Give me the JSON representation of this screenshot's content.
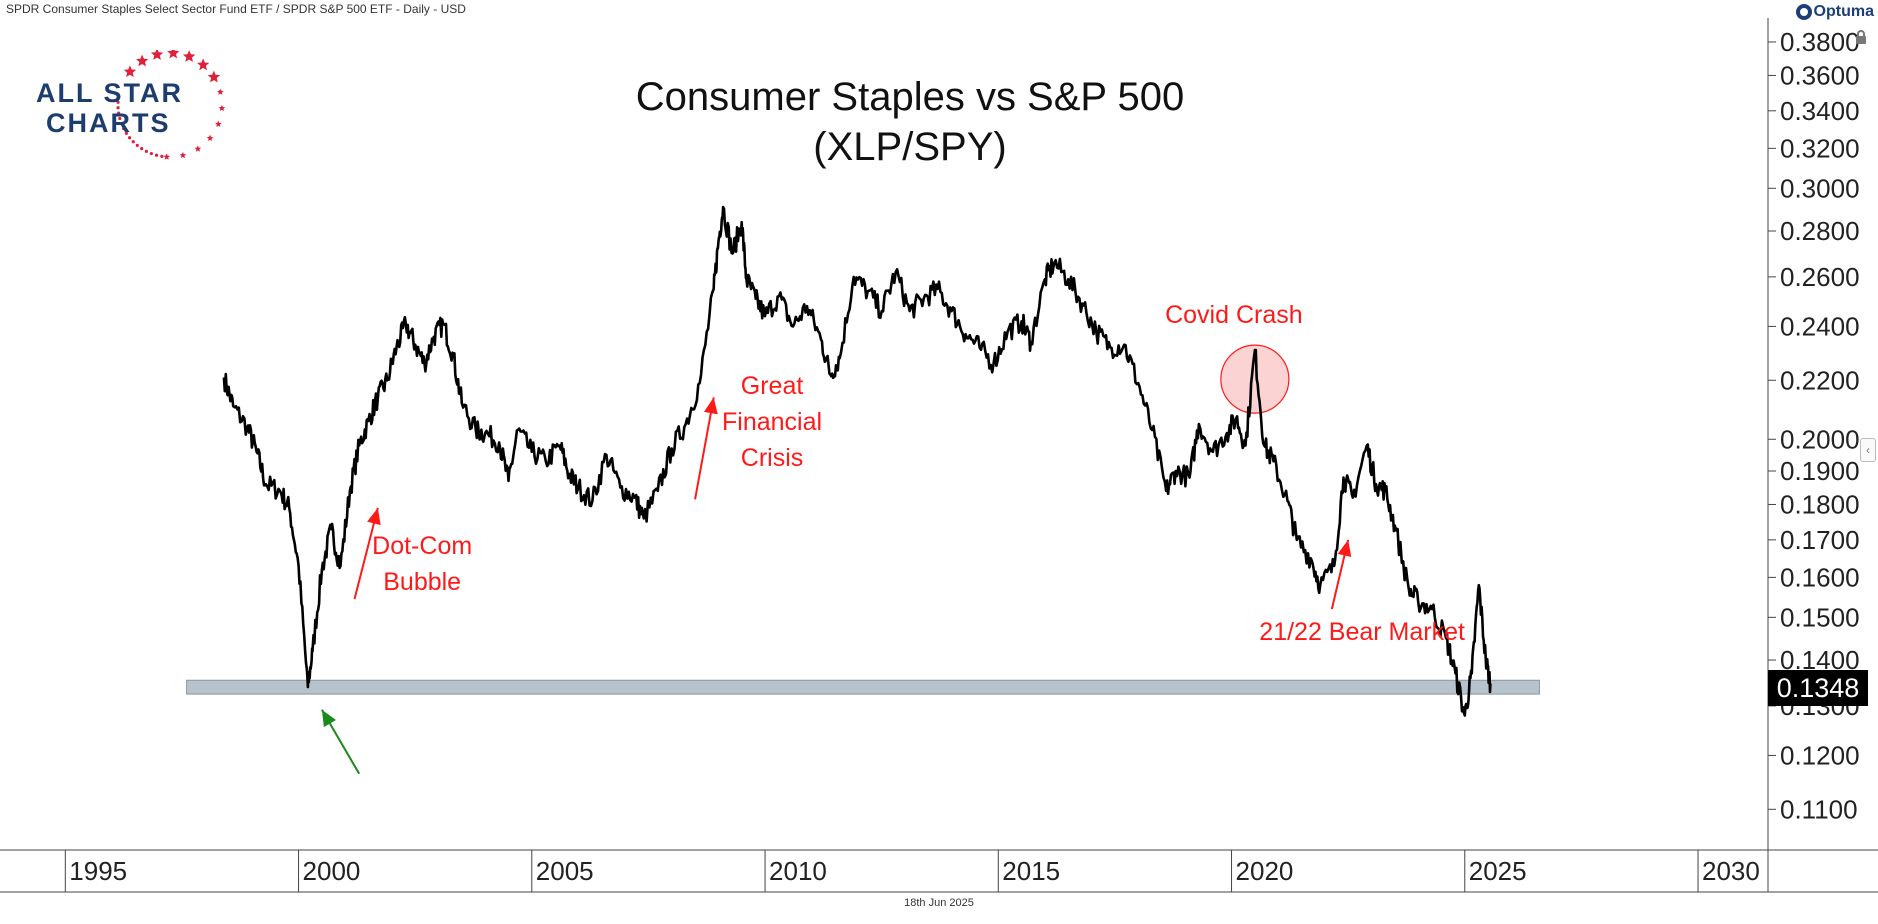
{
  "header": {
    "subtitle": "SPDR Consumer Staples Select Sector Fund ETF / SPDR S&P 500 ETF - Daily - USD",
    "brand": "Optuma",
    "date_stamp": "18th Jun 2025"
  },
  "logo": {
    "line1": "ALL STAR",
    "line2": "CHARTS"
  },
  "colors": {
    "line": "#000000",
    "annotation": "#ff1a1a",
    "support_band": "#b6c2cc",
    "green_arrow": "#1a8a1a",
    "highlight_fill": "#fbd3d3"
  },
  "chart_data": {
    "type": "line",
    "title": "Consumer Staples vs S&P 500",
    "subtitle": "(XLP/SPY)",
    "scale": "log",
    "xlim": [
      1993.6,
      2031.5
    ],
    "ylim": [
      0.103,
      0.395
    ],
    "x_ticks": [
      1995,
      2000,
      2005,
      2010,
      2015,
      2020,
      2025,
      2030
    ],
    "y_ticks": [
      "0.1100",
      "0.1200",
      "0.1300",
      "0.1400",
      "0.1500",
      "0.1600",
      "0.1700",
      "0.1800",
      "0.1900",
      "0.2000",
      "0.2200",
      "0.2400",
      "0.2600",
      "0.2800",
      "0.3000",
      "0.3200",
      "0.3400",
      "0.3600",
      "0.3800"
    ],
    "last_value": "0.1348",
    "support_band": {
      "x_start": 1997.6,
      "x_end": 2026.6,
      "y_low": 0.1325,
      "y_high": 0.1355
    },
    "series": [
      {
        "points": [
          [
            1998.4,
            0.221
          ],
          [
            1998.6,
            0.211
          ],
          [
            1998.9,
            0.204
          ],
          [
            1999.1,
            0.196
          ],
          [
            1999.3,
            0.186
          ],
          [
            1999.6,
            0.184
          ],
          [
            1999.8,
            0.179
          ],
          [
            2000.0,
            0.163
          ],
          [
            2000.2,
            0.134
          ],
          [
            2000.3,
            0.142
          ],
          [
            2000.5,
            0.162
          ],
          [
            2000.7,
            0.173
          ],
          [
            2000.9,
            0.163
          ],
          [
            2001.1,
            0.184
          ],
          [
            2001.3,
            0.198
          ],
          [
            2001.5,
            0.206
          ],
          [
            2001.7,
            0.214
          ],
          [
            2001.9,
            0.22
          ],
          [
            2002.1,
            0.232
          ],
          [
            2002.3,
            0.241
          ],
          [
            2002.5,
            0.233
          ],
          [
            2002.7,
            0.226
          ],
          [
            2002.9,
            0.236
          ],
          [
            2003.1,
            0.241
          ],
          [
            2003.3,
            0.23
          ],
          [
            2003.5,
            0.212
          ],
          [
            2003.8,
            0.203
          ],
          [
            2004.0,
            0.202
          ],
          [
            2004.3,
            0.199
          ],
          [
            2004.5,
            0.187
          ],
          [
            2004.7,
            0.203
          ],
          [
            2005.0,
            0.196
          ],
          [
            2005.3,
            0.193
          ],
          [
            2005.6,
            0.198
          ],
          [
            2005.8,
            0.189
          ],
          [
            2006.0,
            0.185
          ],
          [
            2006.3,
            0.181
          ],
          [
            2006.6,
            0.195
          ],
          [
            2006.9,
            0.185
          ],
          [
            2007.2,
            0.182
          ],
          [
            2007.4,
            0.176
          ],
          [
            2007.7,
            0.184
          ],
          [
            2008.0,
            0.197
          ],
          [
            2008.3,
            0.205
          ],
          [
            2008.6,
            0.219
          ],
          [
            2008.9,
            0.255
          ],
          [
            2009.0,
            0.275
          ],
          [
            2009.1,
            0.291
          ],
          [
            2009.3,
            0.27
          ],
          [
            2009.5,
            0.284
          ],
          [
            2009.6,
            0.259
          ],
          [
            2009.8,
            0.251
          ],
          [
            2010.0,
            0.244
          ],
          [
            2010.3,
            0.252
          ],
          [
            2010.6,
            0.24
          ],
          [
            2010.9,
            0.248
          ],
          [
            2011.2,
            0.235
          ],
          [
            2011.4,
            0.222
          ],
          [
            2011.6,
            0.228
          ],
          [
            2011.9,
            0.26
          ],
          [
            2012.2,
            0.254
          ],
          [
            2012.5,
            0.246
          ],
          [
            2012.8,
            0.262
          ],
          [
            2013.1,
            0.246
          ],
          [
            2013.4,
            0.251
          ],
          [
            2013.7,
            0.255
          ],
          [
            2014.0,
            0.246
          ],
          [
            2014.3,
            0.237
          ],
          [
            2014.6,
            0.232
          ],
          [
            2014.9,
            0.226
          ],
          [
            2015.2,
            0.238
          ],
          [
            2015.5,
            0.242
          ],
          [
            2015.7,
            0.234
          ],
          [
            2016.0,
            0.259
          ],
          [
            2016.2,
            0.266
          ],
          [
            2016.5,
            0.259
          ],
          [
            2016.8,
            0.249
          ],
          [
            2017.1,
            0.238
          ],
          [
            2017.4,
            0.232
          ],
          [
            2017.7,
            0.233
          ],
          [
            2018.0,
            0.219
          ],
          [
            2018.3,
            0.203
          ],
          [
            2018.6,
            0.184
          ],
          [
            2018.8,
            0.19
          ],
          [
            2019.1,
            0.188
          ],
          [
            2019.3,
            0.205
          ],
          [
            2019.6,
            0.196
          ],
          [
            2019.9,
            0.202
          ],
          [
            2020.1,
            0.207
          ],
          [
            2020.3,
            0.198
          ],
          [
            2020.5,
            0.231
          ],
          [
            2020.7,
            0.198
          ],
          [
            2020.9,
            0.193
          ],
          [
            2021.2,
            0.181
          ],
          [
            2021.4,
            0.17
          ],
          [
            2021.7,
            0.165
          ],
          [
            2021.9,
            0.158
          ],
          [
            2022.2,
            0.163
          ],
          [
            2022.4,
            0.188
          ],
          [
            2022.6,
            0.182
          ],
          [
            2022.9,
            0.198
          ],
          [
            2023.1,
            0.186
          ],
          [
            2023.3,
            0.184
          ],
          [
            2023.5,
            0.174
          ],
          [
            2023.8,
            0.157
          ],
          [
            2024.0,
            0.154
          ],
          [
            2024.3,
            0.152
          ],
          [
            2024.6,
            0.145
          ],
          [
            2024.8,
            0.137
          ],
          [
            2025.0,
            0.128
          ],
          [
            2025.15,
            0.137
          ],
          [
            2025.3,
            0.158
          ],
          [
            2025.45,
            0.14
          ],
          [
            2025.55,
            0.1348
          ]
        ]
      }
    ],
    "annotations": [
      {
        "text": "Covid Crash",
        "x": 2020.05,
        "y": 0.2445
      },
      {
        "text": "Great Financial Crisis",
        "lines": [
          "Great",
          "Financial",
          "Crisis"
        ],
        "x": 2010.15,
        "y": 0.2055
      },
      {
        "text": "Dot-Com Bubble",
        "lines": [
          "Dot-Com",
          "Bubble"
        ],
        "x": 2002.65,
        "y": 0.1635
      },
      {
        "text": "21/22 Bear Market",
        "x": 2022.8,
        "y": 0.1465
      }
    ],
    "arrows": [
      {
        "color": "red",
        "from": [
          2001.2,
          0.1545
        ],
        "to": [
          2001.7,
          0.179
        ]
      },
      {
        "color": "red",
        "from": [
          2008.5,
          0.1815
        ],
        "to": [
          2008.9,
          0.214
        ]
      },
      {
        "color": "red",
        "from": [
          2022.15,
          0.152
        ],
        "to": [
          2022.5,
          0.17
        ]
      },
      {
        "color": "green",
        "from": [
          2001.3,
          0.1165
        ],
        "to": [
          2000.5,
          0.1292
        ]
      }
    ],
    "highlight": {
      "x": 2020.5,
      "y": 0.2204
    }
  }
}
